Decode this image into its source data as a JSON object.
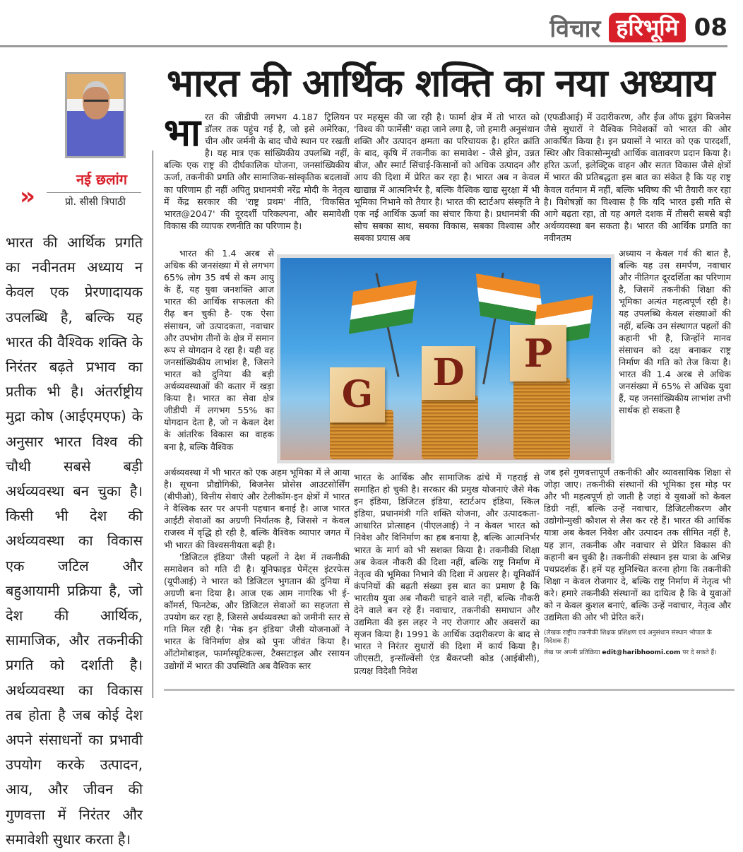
{
  "header": {
    "section": "विचार",
    "logo_text": "हरिभूमि",
    "page_number": "08",
    "brand_color": "#d8202a"
  },
  "headline": "भारत की आर्थिक शक्ति का नया अध्याय",
  "byline": {
    "column_name": "नई छलांग",
    "author": "प्रो. सीसी त्रिपाठी"
  },
  "pull_quote": "भारत की आर्थिक प्रगति का नवीनतम अध्याय न केवल एक प्रेरणादायक उपलब्धि है, बल्कि यह भारत की वैश्विक शक्ति के निरंतर बढ़ते प्रभाव का प्रतीक भी है। अंतर्राष्ट्रीय मुद्रा कोष (आईएमएफ) के अनुसार भारत विश्व की चौथी सबसे बड़ी अर्थव्यवस्था बन चुका है। किसी भी देश की अर्थव्यवस्था का विकास एक जटिल और बहुआयामी प्रक्रिया है, जो देश की आर्थिक, सामाजिक, और तकनीकी प्रगति को दर्शाती है। अर्थव्यवस्था का विकास तब होता है जब कोई देश अपने संसाधनों का प्रभावी उपयोग करके उत्पादन, आय, और जीवन की गुणवत्ता में निरंतर और समावेशी सुधार करता है।",
  "article": {
    "drop_cap": "भा",
    "col1_top": "रत की जीडीपी लगभग 4.187 ट्रिलियन डॉलर तक पहुंच गई है, जो इसे अमेरिका, चीन और जर्मनी के बाद चौथे स्थान पर रखती है। यह मात्र एक सांख्यिकीय उपलब्धि नहीं, बल्कि एक राष्ट्र की दीर्घकालिक योजना, जनसांख्यिकीय ऊर्जा, तकनीकी प्रगति और सामाजिक-सांस्कृतिक बदलावों का परिणाम ही नहीं अपितु प्रधानमंत्री नरेंद्र मोदी के नेतृत्व में केंद्र सरकार की 'राष्ट्र प्रथम' नीति, 'विकसित भारत@2047' की दूरदर्शी परिकल्पना, और समावेशी विकास की व्यापक रणनीति का परिणाम है।",
    "col1_narrow": "भारत की 1.4 अरब से अधिक की जनसंख्या में से लगभग 65% लोग 35 वर्ष से कम आयु के हैं, यह युवा जनशक्ति आज भारत की आर्थिक सफलता की रीढ़ बन चुकी है- एक ऐसा संसाधन, जो उत्पादकता, नवाचार और उपभोग तीनों के क्षेत्र में समान रूप से योगदान दे रहा है। यही वह जनसांख्यिकीय लाभांश है, जिसने भारत को दुनिया की बड़ी अर्थव्यवस्थाओं की कतार में खड़ा किया है। भारत का सेवा क्षेत्र जीडीपी में लगभग 55% का योगदान देता है, जो न केवल देश के आंतरिक विकास का वाहक बना है, बल्कि वैश्विक",
    "col1_bottom": "अर्थव्यवस्था में भी भारत को एक अहम भूमिका में ले आया है। सूचना प्रौद्योगिकी, बिजनेस प्रोसेस आउटसोर्सिंग (बीपीओ), वित्तीय सेवाएं और टेलीकॉम-इन क्षेत्रों में भारत ने वैश्विक स्तर पर अपनी पहचान बनाई है। आज भारत आईटी सेवाओं का अग्रणी निर्यातक है, जिससे न केवल राजस्व में वृद्धि हो रही है, बल्कि वैश्विक व्यापार जगत में भी भारत की विश्वसनीयता बढ़ी है।",
    "col1_bottom_p2": "'डिजिटल इंडिया' जैसी पहलों ने देश में तकनीकी समावेशन को गति दी है। यूनिफाइड पेमेंट्स इंटरफेस (यूपीआई) ने भारत को डिजिटल भुगतान की दुनिया में अग्रणी बना दिया है। आज एक आम नागरिक भी ई-कॉमर्स, फिनटेक, और डिजिटल सेवाओं का सहजता से उपयोग कर रहा है, जिससे अर्थव्यवस्था को जमीनी स्तर से गति मिल रही है। 'मेक इन इंडिया' जैसी योजनाओं ने भारत के विनिर्माण क्षेत्र को पुनः जीवंत किया है। ऑटोमोबाइल, फार्मास्यूटिकल्स, टैक्सटाइल और रसायन उद्योगों में भारत की उपस्थिति अब वैश्विक स्तर",
    "col2_top": "पर महसूस की जा रही है। फार्मा क्षेत्र में तो भारत को 'विश्व की फार्मेसी' कहा जाने लगा है, जो हमारी अनुसंधान शक्ति और उत्पादन क्षमता का परिचायक है। हरित क्रांति के बाद, कृषि में तकनीक का समावेश - जैसे ड्रोन, उन्नत बीज, और स्मार्ट सिंचाई-किसानों को अधिक उत्पादन और आय की दिशा में प्रेरित कर रहा है। भारत अब न केवल खाद्यान्न में आत्मनिर्भर है, बल्कि वैश्विक खाद्य सुरक्षा में भी भूमिका निभाने को तैयार है। भारत की स्टार्टअप संस्कृति ने एक नई आर्थिक ऊर्जा का संचार किया है। प्रधानमंत्री की सोच सबका साथ, सबका विकास, सबका विश्वास और सबका प्रयास अब",
    "col2_bottom": "भारत के आर्थिक और सामाजिक ढांचे में गहराई से समाहित हो चुकी है। सरकार की प्रमुख योजनाएं जैसे मेक इन इंडिया, डिजिटल इंडिया, स्टार्टअप इंडिया, स्किल इंडिया, प्रधानमंत्री गति शक्ति योजना, और उत्पादकता-आधारित प्रोत्साहन (पीएलआई) ने न केवल भारत को निवेश और विनिर्माण का हब बनाया है, बल्कि आत्मनिर्भर भारत के मार्ग को भी सशक्त किया है। तकनीकी शिक्षा अब केवल नौकरी की दिशा नहीं, बल्कि राष्ट्र निर्माण में नेतृत्व की भूमिका निभाने की दिशा में अग्रसर है। यूनिकॉर्न कंपनियों की बढ़ती संख्या इस बात का प्रमाण है कि भारतीय युवा अब नौकरी चाहने वाले नहीं, बल्कि नौकरी देने वाले बन रहे हैं। नवाचार, तकनीकी समाधान और उद्यमिता की इस लहर ने नए रोजगार और अवसरों का सृजन किया है। 1991 के आर्थिक उदारीकरण के बाद से भारत ने निरंतर सुधारों की दिशा में कार्य किया है। जीएसटी, इन्सॉल्वेंसी एंड बैंकरप्सी कोड (आईबीसी), प्रत्यक्ष विदेशी निवेश",
    "col3_top": "(एफडीआई) में उदारीकरण, और ईज ऑफ डूइंग बिजनेस जैसे सुधारों ने वैश्विक निवेशकों को भारत की ओर आकर्षित किया है। इन प्रयासों ने भारत को एक पारदर्शी, स्थिर और विकासोन्मुखी आर्थिक वातावरण प्रदान किया है। हरित ऊर्जा, इलेक्ट्रिक वाहन और सतत विकास जैसे क्षेत्रों में भारत की प्रतिबद्धता इस बात का संकेत है कि यह राष्ट्र केवल वर्तमान में नहीं, बल्कि भविष्य की भी तैयारी कर रहा है। विशेषज्ञों का विश्वास है कि यदि भारत इसी गति से आगे बढ़ता रहा, तो यह अगले दशक में तीसरी सबसे बड़ी अर्थव्यवस्था बन सकता है। भारत की आर्थिक प्रगति का नवीनतम",
    "col3_narrow": "अध्याय न केवल गर्व की बात है, बल्कि यह उस समर्पण, नवाचार और नीतिगत दूरदर्शिता का परिणाम है, जिसमें तकनीकी शिक्षा की भूमिका अत्यंत महत्वपूर्ण रही है। यह उपलब्धि केवल संख्याओं की नहीं, बल्कि उन संस्थागत पहलों की कहानी भी है, जिन्होंने मानव संसाधन को दक्ष बनाकर राष्ट्र निर्माण की गति को तेज किया है। भारत की 1.4 अरब से अधिक जनसंख्या में 65% से अधिक युवा हैं, यह जनसांख्यिकीय लाभांश तभी सार्थक हो सकता है",
    "col3_bottom": "जब इसे गुणवत्तापूर्ण तकनीकी और व्यावसायिक शिक्षा से जोड़ा जाए। तकनीकी संस्थानों की भूमिका इस मोड़ पर और भी महत्वपूर्ण हो जाती है जहां वे युवाओं को केवल डिग्री नहीं, बल्कि उन्हें नवाचार, डिजिटलीकरण और उद्योगोन्मुखी कौशल से लैस कर रहे हैं। भारत की आर्थिक यात्रा अब केवल निवेश और उत्पादन तक सीमित नहीं है, यह ज्ञान, तकनीक और नवाचार से प्रेरित विकास की कहानी बन चुकी है। तकनीकी संस्थान इस यात्रा के अभिन्न पथप्रदर्शक हैं। हमें यह सुनिश्चित करना होगा कि तकनीकी शिक्षा न केवल रोजगार दे, बल्कि राष्ट्र निर्माण में नेतृत्व भी करे। हमारे तकनीकी संस्थानों का दायित्व है कि वे युवाओं को न केवल कुशल बनाएं, बल्कि उन्हें नवाचार, नेतृत्व और उद्यमिता की ओर भी प्रेरित करें।",
    "author_note": "(लेखक राष्ट्रीय तकनीकी शिक्षक प्रशिक्षण एवं अनुसंधान संस्थान भोपाल के निदेशक हैं)",
    "response_prefix": "लेख पर अपनी प्रतिक्रिया",
    "response_email": "edit@haribhoomi.com",
    "response_suffix": "पर दे सकते हैं।"
  },
  "image": {
    "blocks": [
      "G",
      "D",
      "P"
    ]
  }
}
